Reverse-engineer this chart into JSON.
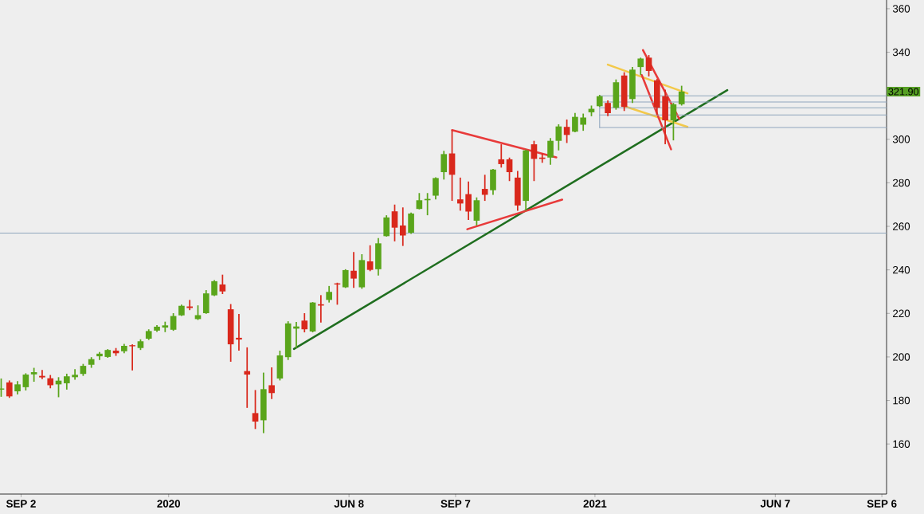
{
  "chart_data": {
    "type": "candlestick",
    "xlim": [
      "2019-08-15",
      "2021-09-10"
    ],
    "xticks": [
      {
        "value": "2019-09-02",
        "label": "SEP 2"
      },
      {
        "value": "2020-01-06",
        "label": "2020"
      },
      {
        "value": "2020-06-08",
        "label": "JUN 8"
      },
      {
        "value": "2020-09-07",
        "label": "SEP 7"
      },
      {
        "value": "2021-01-04",
        "label": "2021"
      },
      {
        "value": "2021-06-07",
        "label": "JUN 7"
      },
      {
        "value": "2021-09-06",
        "label": "SEP 6"
      }
    ],
    "ylim": [
      137,
      364
    ],
    "yticks": [
      160,
      180,
      200,
      220,
      240,
      260,
      280,
      300,
      {
        "value": 320,
        "label": null
      },
      340,
      360
    ],
    "annotations": [
      "321.90"
    ],
    "ref_lines": [
      {
        "axis": "y",
        "value": 256.9,
        "color": "#8fa6bd"
      }
    ],
    "series": [
      {
        "x": [
          "2019-08-16",
          "2019-08-23",
          "2019-08-30",
          "2019-09-06",
          "2019-09-13",
          "2019-09-20",
          "2019-09-27",
          "2019-10-04",
          "2019-10-11",
          "2019-10-18",
          "2019-10-25",
          "2019-11-01",
          "2019-11-08",
          "2019-11-15",
          "2019-11-22",
          "2019-11-29",
          "2019-12-06",
          "2019-12-13",
          "2019-12-20",
          "2019-12-27",
          "2020-01-03",
          "2020-01-10",
          "2020-01-17",
          "2020-01-24",
          "2020-01-31",
          "2020-02-07",
          "2020-02-14",
          "2020-02-21",
          "2020-02-28",
          "2020-03-06",
          "2020-03-13",
          "2020-03-20",
          "2020-03-27",
          "2020-04-03",
          "2020-04-10",
          "2020-04-17",
          "2020-04-24",
          "2020-05-01",
          "2020-05-08",
          "2020-05-15",
          "2020-05-22",
          "2020-05-29",
          "2020-06-05",
          "2020-06-12",
          "2020-06-19",
          "2020-06-26",
          "2020-07-03",
          "2020-07-10",
          "2020-07-17",
          "2020-07-24",
          "2020-07-31",
          "2020-08-07",
          "2020-08-14",
          "2020-08-21",
          "2020-08-28",
          "2020-09-04",
          "2020-09-11",
          "2020-09-18",
          "2020-09-25",
          "2020-10-02",
          "2020-10-09",
          "2020-10-16",
          "2020-10-23",
          "2020-10-30",
          "2020-11-06",
          "2020-11-13",
          "2020-11-20",
          "2020-11-27",
          "2020-12-04",
          "2020-12-11",
          "2020-12-18",
          "2020-12-25",
          "2021-01-01",
          "2021-01-08",
          "2021-01-15",
          "2021-01-22",
          "2021-01-29",
          "2021-02-05",
          "2021-02-12",
          "2021-02-19",
          "2021-02-26",
          "2021-03-05",
          "2021-03-12",
          "2021-03-19"
        ],
        "ohlc": [
          [
            185.0,
            190.1,
            181.7,
            185.5
          ],
          [
            188.3,
            189.2,
            181.2,
            181.9
          ],
          [
            184.2,
            188.9,
            182.8,
            187.4
          ],
          [
            186.1,
            192.5,
            184.6,
            191.9
          ],
          [
            192.0,
            195.0,
            188.6,
            193.0
          ],
          [
            191.3,
            194.0,
            189.8,
            190.6
          ],
          [
            190.2,
            191.7,
            185.6,
            187.0
          ],
          [
            187.4,
            190.7,
            181.5,
            189.1
          ],
          [
            187.9,
            192.3,
            185.0,
            191.1
          ],
          [
            190.7,
            194.4,
            189.5,
            191.8
          ],
          [
            192.2,
            196.8,
            191.3,
            195.9
          ],
          [
            196.4,
            199.9,
            195.0,
            199.0
          ],
          [
            200.3,
            202.3,
            198.6,
            201.5
          ],
          [
            200.0,
            203.6,
            199.6,
            203.2
          ],
          [
            202.9,
            204.1,
            200.5,
            201.7
          ],
          [
            202.6,
            206.0,
            201.7,
            205.1
          ],
          [
            205.4,
            205.8,
            193.8,
            204.9
          ],
          [
            204.1,
            208.1,
            203.2,
            207.2
          ],
          [
            208.4,
            212.7,
            207.8,
            211.9
          ],
          [
            212.1,
            214.6,
            211.5,
            213.9
          ],
          [
            213.5,
            216.2,
            211.4,
            214.5
          ],
          [
            212.5,
            220.1,
            212.0,
            218.8
          ],
          [
            219.1,
            224.0,
            218.8,
            223.5
          ],
          [
            223.2,
            226.2,
            221.5,
            222.5
          ],
          [
            217.4,
            223.7,
            217.0,
            219.2
          ],
          [
            220.1,
            230.7,
            219.8,
            229.2
          ],
          [
            228.3,
            235.3,
            228.0,
            234.8
          ],
          [
            233.3,
            237.8,
            228.9,
            230.1
          ],
          [
            221.9,
            224.3,
            197.8,
            205.8
          ],
          [
            208.8,
            219.7,
            202.9,
            208.0
          ],
          [
            193.5,
            204.4,
            176.6,
            191.9
          ],
          [
            174.2,
            184.8,
            166.9,
            170.3
          ],
          [
            170.9,
            192.8,
            165.0,
            185.2
          ],
          [
            187.0,
            195.2,
            180.7,
            183.4
          ],
          [
            190.1,
            202.9,
            189.2,
            200.7
          ],
          [
            199.9,
            216.4,
            198.6,
            215.4
          ],
          [
            213.0,
            216.1,
            204.1,
            214.0
          ],
          [
            216.7,
            220.1,
            211.3,
            212.7
          ],
          [
            211.7,
            225.2,
            211.3,
            225.0
          ],
          [
            224.2,
            228.4,
            215.8,
            223.6
          ],
          [
            226.2,
            232.6,
            225.0,
            229.9
          ],
          [
            233.8,
            234.1,
            224.0,
            233.3
          ],
          [
            232.0,
            240.3,
            231.7,
            239.9
          ],
          [
            239.6,
            248.2,
            231.7,
            236.0
          ],
          [
            232.0,
            247.2,
            231.3,
            244.5
          ],
          [
            243.9,
            251.3,
            239.4,
            240.0
          ],
          [
            240.3,
            254.6,
            237.4,
            252.2
          ],
          [
            255.5,
            265.1,
            255.3,
            264.1
          ],
          [
            266.9,
            270.0,
            253.1,
            259.4
          ],
          [
            260.4,
            268.7,
            251.0,
            255.8
          ],
          [
            257.1,
            266.3,
            256.5,
            265.9
          ],
          [
            268.0,
            275.3,
            267.8,
            272.0
          ],
          [
            272.0,
            275.3,
            265.1,
            272.6
          ],
          [
            274.1,
            282.5,
            272.4,
            282.2
          ],
          [
            284.9,
            294.7,
            281.5,
            293.2
          ],
          [
            293.5,
            304.1,
            271.7,
            283.7
          ],
          [
            272.4,
            282.4,
            267.2,
            270.5
          ],
          [
            274.8,
            280.6,
            262.9,
            266.8
          ],
          [
            262.6,
            273.3,
            260.4,
            272.0
          ],
          [
            277.2,
            283.7,
            271.7,
            274.5
          ],
          [
            276.6,
            286.4,
            274.5,
            286.1
          ],
          [
            290.8,
            297.7,
            287.0,
            288.6
          ],
          [
            290.8,
            291.6,
            280.8,
            284.9
          ],
          [
            282.4,
            285.5,
            267.2,
            269.6
          ],
          [
            271.7,
            295.3,
            267.2,
            294.9
          ],
          [
            297.7,
            299.3,
            280.8,
            291.0
          ],
          [
            291.6,
            293.5,
            289.2,
            291.0
          ],
          [
            291.6,
            300.6,
            288.3,
            299.3
          ],
          [
            299.3,
            306.9,
            294.9,
            305.9
          ],
          [
            305.7,
            309.1,
            298.3,
            302.0
          ],
          [
            303.5,
            312.1,
            303.2,
            310.3
          ],
          [
            306.7,
            311.8,
            303.9,
            310.0
          ],
          [
            312.4,
            315.5,
            310.6,
            314.0
          ],
          [
            315.2,
            320.4,
            314.9,
            319.8
          ],
          [
            316.7,
            317.9,
            310.6,
            312.0
          ],
          [
            314.5,
            327.5,
            313.6,
            326.2
          ],
          [
            329.3,
            330.8,
            313.0,
            314.9
          ],
          [
            318.5,
            333.2,
            316.7,
            332.0
          ],
          [
            333.2,
            337.5,
            329.5,
            337.1
          ],
          [
            337.5,
            338.7,
            328.9,
            331.4
          ],
          [
            327.1,
            327.7,
            311.2,
            314.5
          ],
          [
            319.8,
            322.8,
            297.7,
            308.7
          ],
          [
            308.7,
            316.7,
            299.5,
            316.1
          ],
          [
            316.1,
            324.6,
            315.5,
            321.9
          ]
        ],
        "colors": [
          "#5aa51b",
          "#d9281c",
          "#5aa51b",
          "#5aa51b",
          "#5aa51b",
          "#d9281c",
          "#d9281c",
          "#5aa51b",
          "#5aa51b",
          "#5aa51b",
          "#5aa51b",
          "#5aa51b",
          "#5aa51b",
          "#5aa51b",
          "#d9281c",
          "#5aa51b",
          "#d9281c",
          "#5aa51b",
          "#5aa51b",
          "#5aa51b",
          "#5aa51b",
          "#5aa51b",
          "#5aa51b",
          "#d9281c",
          "#5aa51b",
          "#5aa51b",
          "#5aa51b",
          "#d9281c",
          "#d9281c",
          "#d9281c",
          "#d9281c",
          "#d9281c",
          "#5aa51b",
          "#d9281c",
          "#5aa51b",
          "#5aa51b",
          "#5aa51b",
          "#d9281c",
          "#5aa51b",
          "#d9281c",
          "#5aa51b",
          "#d9281c",
          "#5aa51b",
          "#d9281c",
          "#5aa51b",
          "#d9281c",
          "#5aa51b",
          "#5aa51b",
          "#d9281c",
          "#d9281c",
          "#5aa51b",
          "#5aa51b",
          "#5aa51b",
          "#5aa51b",
          "#5aa51b",
          "#d9281c",
          "#d9281c",
          "#d9281c",
          "#5aa51b",
          "#d9281c",
          "#5aa51b",
          "#d9281c",
          "#d9281c",
          "#d9281c",
          "#5aa51b",
          "#d9281c",
          "#d9281c",
          "#5aa51b",
          "#5aa51b",
          "#d9281c",
          "#5aa51b",
          "#5aa51b",
          "#5aa51b",
          "#5aa51b",
          "#d9281c",
          "#5aa51b",
          "#d9281c",
          "#5aa51b",
          "#5aa51b",
          "#d9281c",
          "#d9281c",
          "#d9281c",
          "#5aa51b",
          "#5aa51b"
        ]
      },
      {
        "type": "line",
        "x": [
          "2020-04-22",
          "2021-04-27"
        ],
        "values": [
          203.7,
          322.6
        ],
        "color": "#1f6e1f"
      },
      {
        "type": "line",
        "x": [
          "2020-09-04",
          "2020-12-02"
        ],
        "values": [
          304.2,
          291.7
        ],
        "color": "#e83a3a"
      },
      {
        "type": "line",
        "x": [
          "2020-09-17",
          "2020-12-07"
        ],
        "values": [
          258.7,
          272.3
        ],
        "color": "#e83a3a"
      },
      {
        "type": "line",
        "x": [
          "2021-01-15",
          "2021-03-24"
        ],
        "values": [
          334.3,
          321.1
        ],
        "color": "#f3c94a"
      },
      {
        "type": "line",
        "x": [
          "2021-01-27",
          "2021-03-24"
        ],
        "values": [
          315.6,
          305.7
        ],
        "color": "#f3c94a"
      },
      {
        "type": "line",
        "x": [
          "2021-02-14",
          "2021-03-17"
        ],
        "values": [
          341.0,
          309.4
        ],
        "color": "#e83a3a"
      },
      {
        "type": "line",
        "x": [
          "2021-02-13",
          "2021-03-10"
        ],
        "values": [
          329.5,
          295.4
        ],
        "color": "#e83a3a"
      },
      {
        "type": "line",
        "x": [
          "2021-01-08",
          "2021-09-10"
        ],
        "values": [
          320.0,
          320.0
        ],
        "color": "#8fa6bd"
      },
      {
        "type": "line",
        "x": [
          "2021-01-11",
          "2021-09-10"
        ],
        "values": [
          317.1,
          317.1
        ],
        "color": "#8fa6bd"
      },
      {
        "type": "line",
        "x": [
          "2021-01-08",
          "2021-09-10"
        ],
        "values": [
          314.5,
          314.5
        ],
        "color": "#8fa6bd"
      },
      {
        "type": "line",
        "x": [
          "2021-01-08",
          "2021-09-10"
        ],
        "values": [
          311.2,
          311.2
        ],
        "color": "#8fa6bd"
      },
      {
        "type": "line",
        "x": [
          "2021-01-08",
          "2021-09-10"
        ],
        "values": [
          305.4,
          305.4
        ],
        "color": "#8fa6bd"
      },
      {
        "type": "line",
        "x": [
          "2021-01-08",
          "2021-01-08"
        ],
        "values": [
          320.0,
          305.4
        ],
        "color": "#8fa6bd"
      }
    ]
  }
}
